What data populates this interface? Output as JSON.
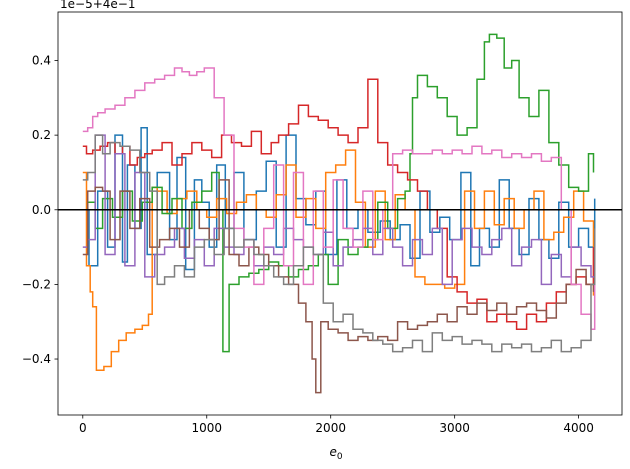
{
  "chart_data": {
    "type": "line",
    "title": "",
    "xlabel": "e",
    "xlabel_subscript": "0",
    "ylabel": "",
    "offset_text": "1e−5+4e−1",
    "xlim": [
      -200,
      4350
    ],
    "ylim": [
      -0.55,
      0.53
    ],
    "x_ticks": [
      0,
      1000,
      2000,
      3000,
      4000
    ],
    "x_tick_labels": [
      "0",
      "1000",
      "2000",
      "3000",
      "4000"
    ],
    "y_ticks": [
      -0.4,
      -0.2,
      0.0,
      0.2,
      0.4
    ],
    "y_tick_labels": [
      "−0.4",
      "−0.2",
      "0.0",
      "0.2",
      "0.4"
    ],
    "grid": false,
    "legend": "none",
    "reference_line": {
      "y": 0.0,
      "color": "#000000"
    },
    "series": [
      {
        "color": "#1f77b4",
        "style": "step",
        "x": [
          0,
          50,
          120,
          200,
          260,
          320,
          360,
          420,
          470,
          520,
          600,
          700,
          760,
          830,
          900,
          960,
          1020,
          1080,
          1150,
          1220,
          1300,
          1400,
          1480,
          1560,
          1640,
          1720,
          1800,
          1880,
          1960,
          2050,
          2130,
          2220,
          2300,
          2400,
          2480,
          2560,
          2640,
          2720,
          2800,
          2880,
          2960,
          3050,
          3130,
          3200,
          3280,
          3360,
          3440,
          3520,
          3600,
          3680,
          3760,
          3840,
          3920,
          4000,
          4080,
          4130
        ],
        "y": [
          0.0,
          -0.15,
          0.05,
          -0.1,
          0.2,
          -0.14,
          0.12,
          -0.05,
          0.22,
          -0.12,
          0.1,
          -0.08,
          0.14,
          -0.16,
          0.08,
          0.02,
          -0.1,
          0.12,
          -0.05,
          0.1,
          -0.08,
          0.05,
          0.13,
          -0.1,
          0.2,
          0.03,
          -0.04,
          0.05,
          -0.12,
          0.08,
          -0.05,
          0.0,
          -0.06,
          -0.03,
          -0.08,
          -0.04,
          -0.13,
          0.05,
          -0.06,
          -0.02,
          -0.08,
          0.1,
          -0.15,
          -0.05,
          -0.1,
          0.08,
          -0.05,
          -0.12,
          0.03,
          -0.08,
          -0.13,
          0.02,
          -0.1,
          -0.05,
          -0.1,
          0.03
        ]
      },
      {
        "color": "#ff7f0e",
        "style": "step",
        "x": [
          0,
          30,
          60,
          80,
          110,
          170,
          230,
          290,
          350,
          420,
          480,
          530,
          560,
          600,
          680,
          760,
          840,
          920,
          1000,
          1080,
          1160,
          1240,
          1320,
          1400,
          1480,
          1560,
          1640,
          1720,
          1800,
          1880,
          1960,
          2040,
          2120,
          2200,
          2280,
          2360,
          2440,
          2520,
          2600,
          2680,
          2760,
          2840,
          2920,
          3000,
          3080,
          3160,
          3240,
          3320,
          3400,
          3480,
          3560,
          3640,
          3720,
          3800,
          3880,
          3960,
          4040,
          4120
        ],
        "y": [
          0.1,
          -0.15,
          -0.22,
          -0.26,
          -0.43,
          -0.42,
          -0.38,
          -0.35,
          -0.33,
          -0.32,
          -0.31,
          -0.28,
          0.06,
          0.05,
          -0.01,
          0.03,
          0.05,
          0.0,
          -0.02,
          0.03,
          -0.01,
          0.02,
          0.04,
          0.0,
          -0.02,
          0.04,
          0.12,
          -0.02,
          0.03,
          -0.05,
          0.1,
          0.12,
          0.16,
          0.02,
          -0.1,
          0.05,
          -0.08,
          0.04,
          0.0,
          -0.18,
          -0.2,
          -0.2,
          -0.21,
          -0.2,
          0.05,
          -0.05,
          0.05,
          -0.04,
          0.03,
          -0.05,
          0.0,
          0.05,
          -0.08,
          -0.06,
          -0.02,
          0.05,
          -0.03,
          -0.23
        ]
      },
      {
        "color": "#2ca02c",
        "style": "step",
        "x": [
          0,
          40,
          100,
          160,
          240,
          320,
          400,
          480,
          560,
          640,
          720,
          800,
          880,
          960,
          1040,
          1100,
          1130,
          1180,
          1260,
          1340,
          1420,
          1500,
          1580,
          1660,
          1740,
          1820,
          1900,
          1980,
          2060,
          2140,
          2220,
          2300,
          2380,
          2460,
          2540,
          2600,
          2640,
          2660,
          2700,
          2780,
          2860,
          2940,
          3020,
          3100,
          3180,
          3240,
          3280,
          3340,
          3400,
          3460,
          3520,
          3600,
          3680,
          3760,
          3840,
          3920,
          4000,
          4080,
          4120
        ],
        "y": [
          0.0,
          0.02,
          -0.05,
          0.03,
          -0.02,
          0.05,
          -0.03,
          0.02,
          0.06,
          -0.01,
          0.03,
          -0.05,
          0.02,
          0.05,
          0.1,
          0.0,
          -0.38,
          -0.2,
          -0.18,
          -0.17,
          -0.16,
          -0.14,
          -0.15,
          -0.18,
          -0.16,
          -0.15,
          -0.12,
          -0.2,
          -0.08,
          -0.12,
          -0.1,
          -0.08,
          0.02,
          -0.05,
          0.03,
          0.05,
          0.15,
          0.3,
          0.36,
          0.33,
          0.3,
          0.25,
          0.2,
          0.22,
          0.35,
          0.45,
          0.47,
          0.46,
          0.38,
          0.4,
          0.3,
          0.25,
          0.32,
          0.18,
          0.12,
          0.06,
          0.05,
          0.15,
          0.1
        ]
      },
      {
        "color": "#d62728",
        "style": "step",
        "x": [
          0,
          30,
          80,
          140,
          200,
          260,
          320,
          380,
          440,
          500,
          560,
          640,
          720,
          800,
          880,
          960,
          1040,
          1120,
          1200,
          1280,
          1360,
          1440,
          1520,
          1580,
          1660,
          1740,
          1820,
          1900,
          1980,
          2060,
          2140,
          2220,
          2300,
          2380,
          2460,
          2540,
          2620,
          2700,
          2780,
          2860,
          2940,
          3020,
          3100,
          3180,
          3260,
          3340,
          3420,
          3500,
          3580,
          3660,
          3740,
          3820,
          3900,
          3980,
          4060,
          4120
        ],
        "y": [
          0.17,
          0.15,
          0.16,
          0.17,
          0.18,
          0.15,
          0.17,
          0.12,
          0.14,
          0.15,
          0.16,
          0.18,
          0.12,
          0.15,
          0.18,
          0.16,
          0.14,
          0.2,
          0.18,
          0.17,
          0.21,
          0.15,
          0.18,
          0.2,
          0.23,
          0.28,
          0.25,
          0.24,
          0.22,
          0.2,
          0.18,
          0.22,
          0.35,
          0.18,
          0.12,
          0.1,
          0.08,
          0.05,
          0.0,
          -0.05,
          -0.18,
          -0.22,
          -0.25,
          -0.24,
          -0.3,
          -0.28,
          -0.3,
          -0.32,
          -0.28,
          -0.3,
          -0.25,
          -0.22,
          -0.2,
          -0.18,
          -0.2,
          -0.1
        ]
      },
      {
        "color": "#9467bd",
        "style": "step",
        "x": [
          0,
          40,
          100,
          180,
          260,
          340,
          420,
          500,
          580,
          660,
          740,
          820,
          900,
          980,
          1060,
          1140,
          1220,
          1300,
          1380,
          1460,
          1540,
          1620,
          1700,
          1780,
          1860,
          1940,
          2020,
          2100,
          2180,
          2260,
          2340,
          2420,
          2500,
          2580,
          2660,
          2740,
          2820,
          2900,
          2980,
          3060,
          3140,
          3220,
          3300,
          3380,
          3460,
          3540,
          3620,
          3700,
          3780,
          3860,
          3940,
          4020,
          4100,
          4130
        ],
        "y": [
          -0.1,
          -0.08,
          0.2,
          -0.12,
          0.15,
          -0.15,
          0.1,
          -0.18,
          -0.12,
          -0.1,
          -0.05,
          -0.13,
          -0.08,
          -0.15,
          -0.05,
          -0.1,
          -0.12,
          -0.08,
          -0.15,
          -0.1,
          -0.12,
          -0.05,
          -0.08,
          -0.1,
          -0.12,
          -0.06,
          -0.15,
          -0.1,
          -0.08,
          -0.05,
          -0.12,
          -0.05,
          -0.1,
          -0.15,
          -0.08,
          -0.12,
          -0.05,
          -0.2,
          -0.08,
          -0.05,
          -0.1,
          -0.12,
          -0.08,
          -0.05,
          -0.15,
          -0.1,
          -0.08,
          -0.2,
          -0.12,
          -0.18,
          -0.1,
          -0.15,
          -0.18,
          -0.15
        ]
      },
      {
        "color": "#8c564b",
        "style": "step",
        "x": [
          0,
          40,
          100,
          160,
          220,
          300,
          380,
          460,
          540,
          620,
          700,
          780,
          860,
          940,
          1020,
          1100,
          1180,
          1260,
          1340,
          1420,
          1500,
          1580,
          1660,
          1740,
          1800,
          1850,
          1880,
          1920,
          1980,
          2060,
          2140,
          2220,
          2300,
          2380,
          2460,
          2540,
          2620,
          2700,
          2780,
          2860,
          2940,
          3020,
          3100,
          3180,
          3260,
          3340,
          3420,
          3500,
          3580,
          3660,
          3740,
          3820,
          3900,
          3980,
          4060,
          4120
        ],
        "y": [
          -0.12,
          0.05,
          0.06,
          0.05,
          -0.08,
          0.05,
          -0.05,
          0.03,
          -0.1,
          -0.08,
          -0.05,
          -0.1,
          0.0,
          -0.05,
          -0.08,
          0.08,
          -0.12,
          -0.15,
          -0.1,
          -0.12,
          -0.15,
          -0.18,
          -0.2,
          -0.25,
          -0.3,
          -0.4,
          -0.49,
          -0.3,
          -0.32,
          -0.33,
          -0.35,
          -0.34,
          -0.35,
          -0.34,
          -0.35,
          -0.3,
          -0.32,
          -0.31,
          -0.3,
          -0.28,
          -0.3,
          -0.26,
          -0.28,
          -0.25,
          -0.27,
          -0.25,
          -0.28,
          -0.26,
          -0.25,
          -0.27,
          -0.29,
          -0.25,
          -0.2,
          -0.16,
          -0.2,
          -0.22
        ]
      },
      {
        "color": "#e377c2",
        "style": "step",
        "x": [
          0,
          40,
          80,
          120,
          180,
          260,
          340,
          420,
          500,
          580,
          660,
          740,
          800,
          860,
          920,
          980,
          1060,
          1140,
          1220,
          1300,
          1380,
          1460,
          1540,
          1620,
          1700,
          1780,
          1860,
          1940,
          2020,
          2100,
          2180,
          2260,
          2340,
          2420,
          2500,
          2580,
          2660,
          2740,
          2820,
          2900,
          2980,
          3060,
          3140,
          3220,
          3300,
          3380,
          3460,
          3540,
          3620,
          3700,
          3780,
          3860,
          3940,
          4020,
          4100,
          4130
        ],
        "y": [
          0.21,
          0.22,
          0.25,
          0.26,
          0.27,
          0.28,
          0.3,
          0.32,
          0.34,
          0.35,
          0.36,
          0.38,
          0.37,
          0.36,
          0.37,
          0.38,
          0.3,
          0.2,
          -0.05,
          -0.1,
          -0.2,
          -0.05,
          0.12,
          -0.15,
          0.1,
          -0.2,
          0.05,
          -0.1,
          0.08,
          -0.05,
          -0.1,
          0.05,
          -0.08,
          0.0,
          0.15,
          0.16,
          0.15,
          0.15,
          0.16,
          0.15,
          0.16,
          0.15,
          0.17,
          0.15,
          0.16,
          0.14,
          0.15,
          0.14,
          0.15,
          0.13,
          0.14,
          0.0,
          -0.2,
          -0.28,
          -0.32,
          -0.1
        ]
      },
      {
        "color": "#7f7f7f",
        "style": "step",
        "x": [
          0,
          40,
          100,
          160,
          220,
          300,
          380,
          460,
          540,
          600,
          660,
          740,
          820,
          900,
          980,
          1060,
          1140,
          1220,
          1300,
          1380,
          1460,
          1540,
          1620,
          1700,
          1780,
          1860,
          1940,
          2020,
          2100,
          2180,
          2260,
          2340,
          2420,
          2500,
          2580,
          2660,
          2740,
          2820,
          2900,
          2980,
          3060,
          3140,
          3220,
          3300,
          3380,
          3460,
          3540,
          3620,
          3700,
          3780,
          3860,
          3940,
          4020,
          4100,
          4130
        ],
        "y": [
          0.08,
          0.1,
          0.2,
          0.15,
          0.18,
          0.17,
          0.16,
          0.1,
          0.05,
          -0.2,
          -0.18,
          -0.15,
          -0.18,
          -0.1,
          -0.08,
          -0.12,
          -0.05,
          -0.1,
          -0.08,
          -0.12,
          -0.15,
          -0.18,
          -0.2,
          -0.15,
          -0.1,
          -0.12,
          -0.25,
          -0.3,
          -0.28,
          -0.32,
          -0.33,
          -0.35,
          -0.36,
          -0.38,
          -0.37,
          -0.35,
          -0.38,
          -0.33,
          -0.35,
          -0.34,
          -0.36,
          -0.35,
          -0.36,
          -0.38,
          -0.36,
          -0.37,
          -0.36,
          -0.38,
          -0.37,
          -0.35,
          -0.38,
          -0.37,
          -0.35,
          -0.2,
          -0.05
        ]
      }
    ]
  }
}
